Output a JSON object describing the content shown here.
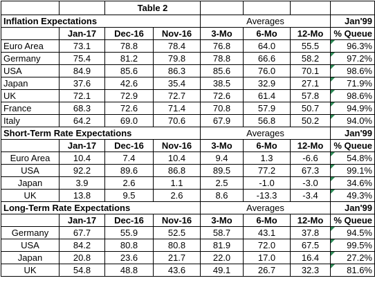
{
  "table_title": "Table 2",
  "columns": [
    "Jan-17",
    "Dec-16",
    "Nov-16",
    "3-Mo",
    "6-Mo",
    "12-Mo",
    "% Queue"
  ],
  "averages_label": "Averages",
  "jan_label": "Jan'99",
  "colors": {
    "negative": "#c00000",
    "triangle": "#2e8b57",
    "grid": "#000000"
  },
  "sections": [
    {
      "title": "Inflation Expectations",
      "rows": [
        {
          "label": "Euro Area",
          "values": [
            "73.1",
            "78.8",
            "78.4",
            "76.8",
            "64.0",
            "55.5",
            "96.3%"
          ]
        },
        {
          "label": "Germany",
          "values": [
            "75.4",
            "81.2",
            "79.8",
            "78.8",
            "66.6",
            "58.2",
            "97.2%"
          ]
        },
        {
          "label": "USA",
          "values": [
            "84.9",
            "85.6",
            "86.3",
            "85.6",
            "76.0",
            "70.1",
            "98.6%"
          ]
        },
        {
          "label": "Japan",
          "values": [
            "37.6",
            "42.6",
            "35.4",
            "38.5",
            "32.9",
            "27.1",
            "71.9%"
          ]
        },
        {
          "label": "UK",
          "values": [
            "72.1",
            "72.9",
            "72.7",
            "72.6",
            "61.4",
            "57.8",
            "98.6%"
          ]
        },
        {
          "label": "France",
          "values": [
            "68.3",
            "72.6",
            "71.4",
            "70.8",
            "57.9",
            "50.7",
            "94.9%"
          ]
        },
        {
          "label": "Italy",
          "values": [
            "64.2",
            "69.0",
            "70.6",
            "67.9",
            "56.8",
            "50.2",
            "94.0%"
          ]
        }
      ]
    },
    {
      "title": "Short-Term Rate Expectations",
      "rows": [
        {
          "label": "Euro Area",
          "values": [
            "10.4",
            "7.4",
            "10.4",
            "9.4",
            "1.3",
            "-6.6",
            "54.8%"
          ]
        },
        {
          "label": "USA",
          "values": [
            "92.2",
            "89.6",
            "86.8",
            "89.5",
            "77.2",
            "67.3",
            "99.1%"
          ]
        },
        {
          "label": "Japan",
          "values": [
            "3.9",
            "2.6",
            "1.1",
            "2.5",
            "-1.0",
            "-3.0",
            "34.6%"
          ]
        },
        {
          "label": "UK",
          "values": [
            "13.8",
            "9.5",
            "2.6",
            "8.6",
            "-13.3",
            "-3.4",
            "49.3%"
          ]
        }
      ]
    },
    {
      "title": "Long-Term Rate Expectations",
      "rows": [
        {
          "label": "Germany",
          "values": [
            "67.7",
            "55.9",
            "52.5",
            "58.7",
            "43.1",
            "37.8",
            "94.5%"
          ]
        },
        {
          "label": "USA",
          "values": [
            "84.2",
            "80.8",
            "80.8",
            "81.9",
            "72.0",
            "67.5",
            "99.5%"
          ]
        },
        {
          "label": "Japan",
          "values": [
            "20.8",
            "23.6",
            "21.7",
            "22.0",
            "17.0",
            "16.4",
            "27.2%"
          ]
        },
        {
          "label": "UK",
          "values": [
            "54.8",
            "48.8",
            "43.6",
            "49.1",
            "26.7",
            "32.3",
            "81.6%"
          ]
        }
      ]
    }
  ]
}
